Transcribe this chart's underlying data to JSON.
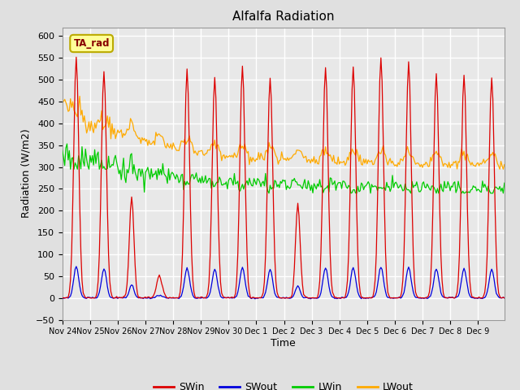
{
  "title": "Alfalfa Radiation",
  "xlabel": "Time",
  "ylabel": "Radiation (W/m2)",
  "ylim": [
    -50,
    620
  ],
  "yticks": [
    -50,
    0,
    50,
    100,
    150,
    200,
    250,
    300,
    350,
    400,
    450,
    500,
    550,
    600
  ],
  "legend_labels": [
    "SWin",
    "SWout",
    "LWin",
    "LWout"
  ],
  "legend_colors": [
    "#dd0000",
    "#0000dd",
    "#00cc00",
    "#ffaa00"
  ],
  "SWin_color": "#dd0000",
  "SWout_color": "#0000dd",
  "LWin_color": "#00cc00",
  "LWout_color": "#ffaa00",
  "annotation_text": "TA_rad",
  "annotation_bg": "#ffff99",
  "annotation_border": "#bbaa00",
  "annotation_text_color": "#880000",
  "fig_bg": "#e0e0e0",
  "plot_bg": "#e8e8e8",
  "n_days": 16,
  "x_tick_labels": [
    "Nov 24",
    "Nov 25",
    "Nov 26",
    "Nov 27",
    "Nov 28",
    "Nov 29",
    "Nov 30",
    "Dec 1",
    "Dec 2",
    "Dec 3",
    "Dec 4",
    "Dec 5",
    "Dec 6",
    "Dec 7",
    "Dec 8",
    "Dec 9"
  ],
  "x_tick_positions": [
    0,
    24,
    48,
    72,
    96,
    120,
    144,
    168,
    192,
    216,
    240,
    264,
    288,
    312,
    336,
    360
  ]
}
